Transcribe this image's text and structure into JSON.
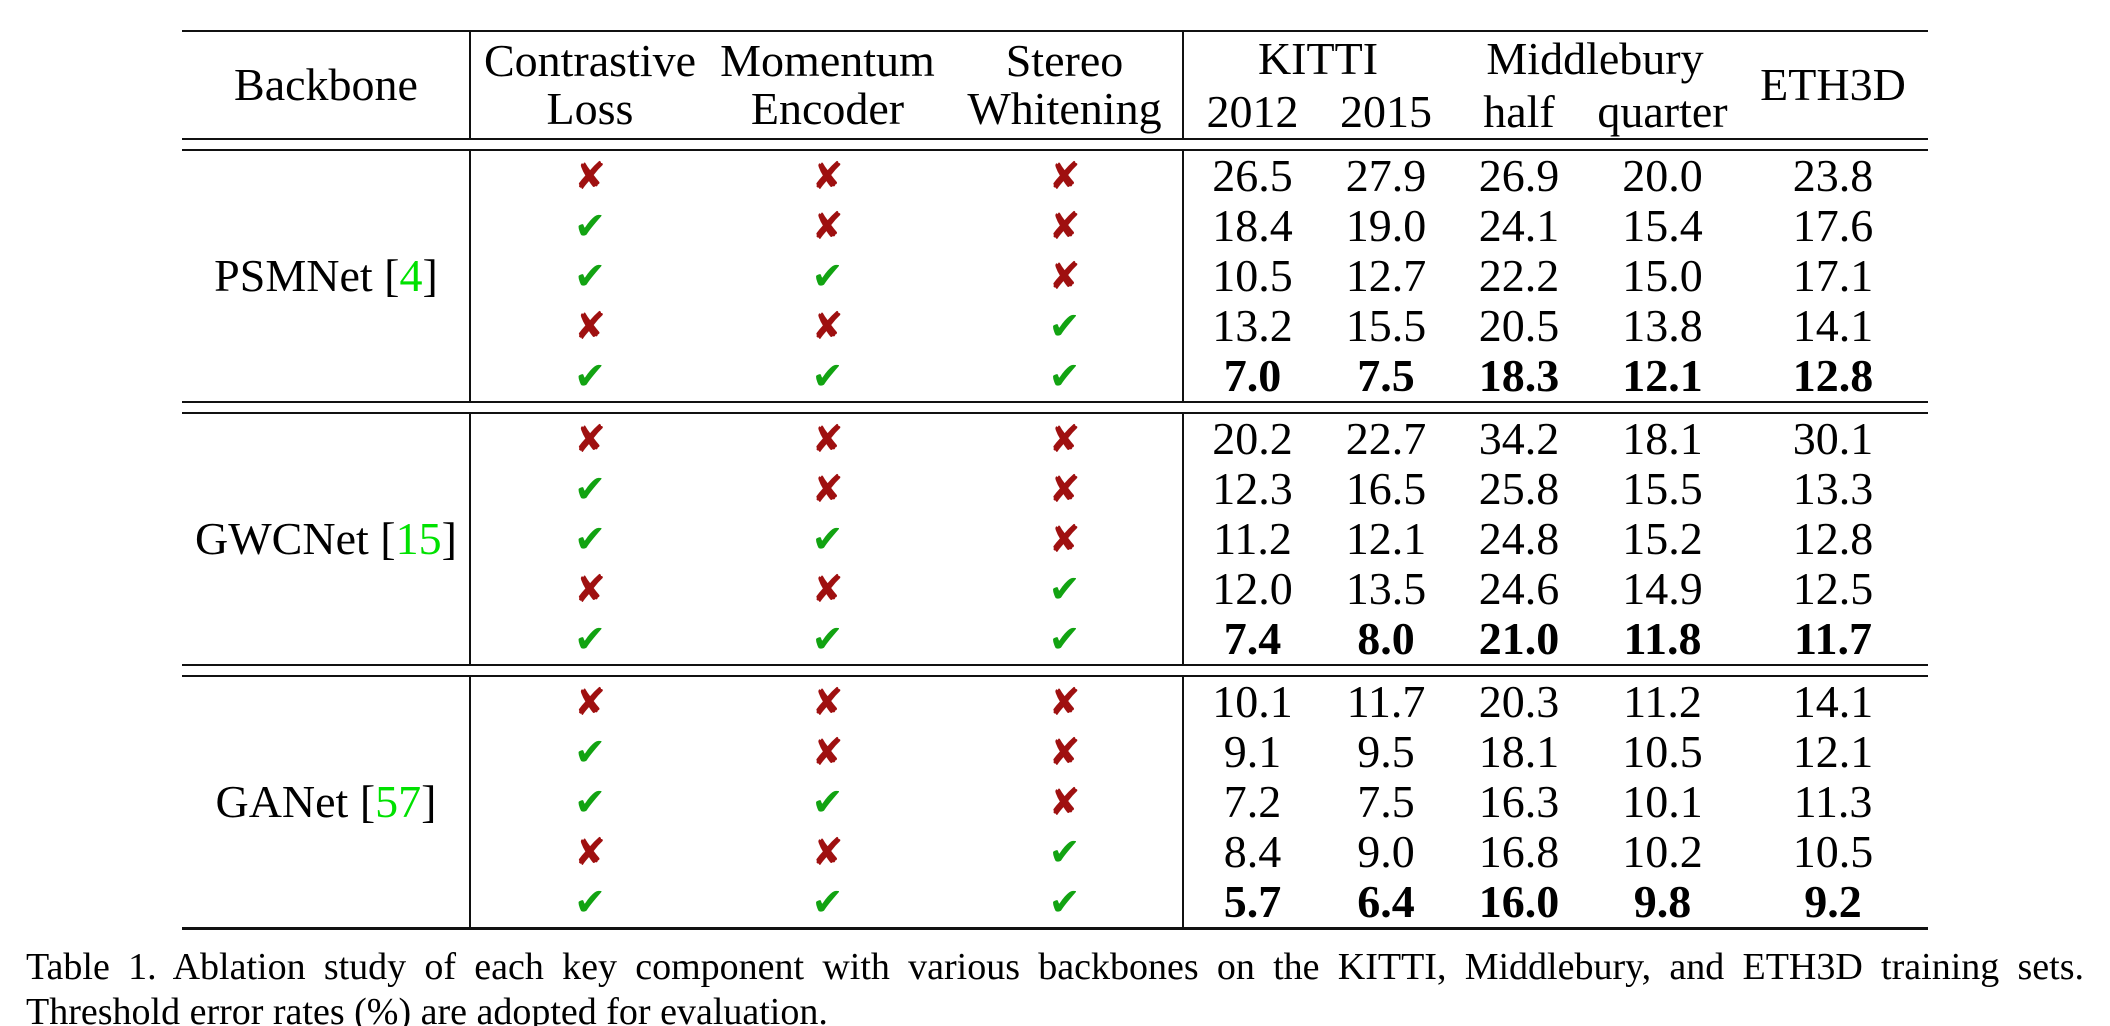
{
  "colors": {
    "check": "#12a312",
    "cross": "#9f1010",
    "cite": "#00e100"
  },
  "icons": {
    "check": "✔",
    "cross": "✘"
  },
  "table": {
    "citation_open": "[",
    "citation_close": "]",
    "header": {
      "backbone": "Backbone",
      "contrastive": [
        "Contrastive",
        "Loss"
      ],
      "momentum": [
        "Momentum",
        "Encoder"
      ],
      "stereo": [
        "Stereo",
        "Whitening"
      ],
      "kitti": "KITTI",
      "middlebury": "Middlebury",
      "eth3d": "ETH3D",
      "sub": [
        "2012",
        "2015",
        "half",
        "quarter"
      ]
    },
    "groups": [
      {
        "name": "PSMNet",
        "cite": "4",
        "rows": [
          {
            "marks": [
              false,
              false,
              false
            ],
            "values": [
              "26.5",
              "27.9",
              "26.9",
              "20.0",
              "23.8"
            ],
            "bold": false
          },
          {
            "marks": [
              true,
              false,
              false
            ],
            "values": [
              "18.4",
              "19.0",
              "24.1",
              "15.4",
              "17.6"
            ],
            "bold": false
          },
          {
            "marks": [
              true,
              true,
              false
            ],
            "values": [
              "10.5",
              "12.7",
              "22.2",
              "15.0",
              "17.1"
            ],
            "bold": false
          },
          {
            "marks": [
              false,
              false,
              true
            ],
            "values": [
              "13.2",
              "15.5",
              "20.5",
              "13.8",
              "14.1"
            ],
            "bold": false
          },
          {
            "marks": [
              true,
              true,
              true
            ],
            "values": [
              "7.0",
              "7.5",
              "18.3",
              "12.1",
              "12.8"
            ],
            "bold": true
          }
        ]
      },
      {
        "name": "GWCNet",
        "cite": "15",
        "rows": [
          {
            "marks": [
              false,
              false,
              false
            ],
            "values": [
              "20.2",
              "22.7",
              "34.2",
              "18.1",
              "30.1"
            ],
            "bold": false
          },
          {
            "marks": [
              true,
              false,
              false
            ],
            "values": [
              "12.3",
              "16.5",
              "25.8",
              "15.5",
              "13.3"
            ],
            "bold": false
          },
          {
            "marks": [
              true,
              true,
              false
            ],
            "values": [
              "11.2",
              "12.1",
              "24.8",
              "15.2",
              "12.8"
            ],
            "bold": false
          },
          {
            "marks": [
              false,
              false,
              true
            ],
            "values": [
              "12.0",
              "13.5",
              "24.6",
              "14.9",
              "12.5"
            ],
            "bold": false
          },
          {
            "marks": [
              true,
              true,
              true
            ],
            "values": [
              "7.4",
              "8.0",
              "21.0",
              "11.8",
              "11.7"
            ],
            "bold": true
          }
        ]
      },
      {
        "name": "GANet",
        "cite": "57",
        "rows": [
          {
            "marks": [
              false,
              false,
              false
            ],
            "values": [
              "10.1",
              "11.7",
              "20.3",
              "11.2",
              "14.1"
            ],
            "bold": false
          },
          {
            "marks": [
              true,
              false,
              false
            ],
            "values": [
              "9.1",
              "9.5",
              "18.1",
              "10.5",
              "12.1"
            ],
            "bold": false
          },
          {
            "marks": [
              true,
              true,
              false
            ],
            "values": [
              "7.2",
              "7.5",
              "16.3",
              "10.1",
              "11.3"
            ],
            "bold": false
          },
          {
            "marks": [
              false,
              false,
              true
            ],
            "values": [
              "8.4",
              "9.0",
              "16.8",
              "10.2",
              "10.5"
            ],
            "bold": false
          },
          {
            "marks": [
              true,
              true,
              true
            ],
            "values": [
              "5.7",
              "6.4",
              "16.0",
              "9.8",
              "9.2"
            ],
            "bold": true
          }
        ]
      }
    ]
  },
  "caption": {
    "label": "Table 1.",
    "text": "Ablation study of each key component with various backbones on the KITTI, Middlebury, and ETH3D training sets. Threshold error rates (%) are adopted for evaluation."
  }
}
